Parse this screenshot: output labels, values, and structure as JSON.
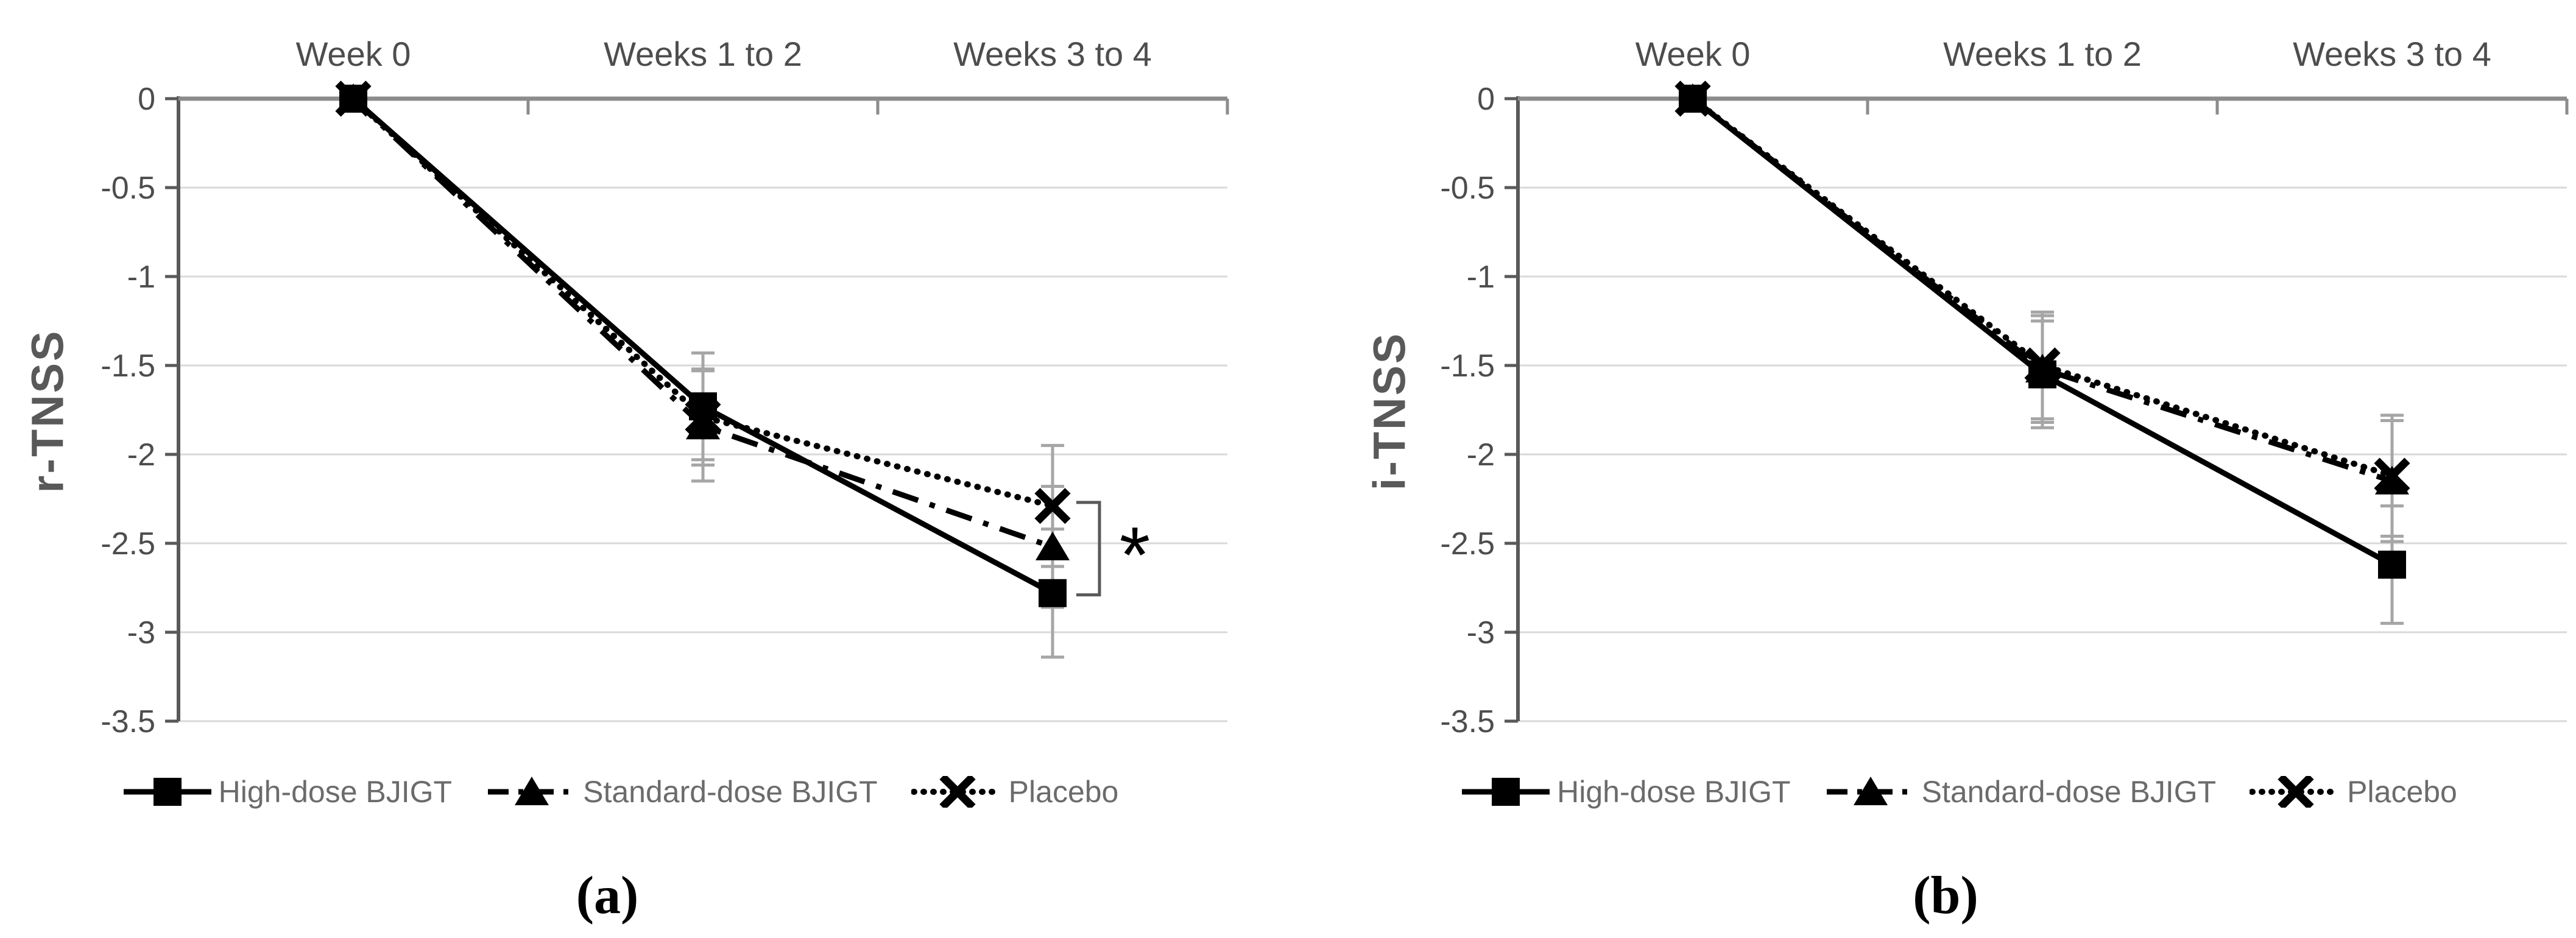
{
  "page": {
    "background": "#ffffff"
  },
  "panels": [
    {
      "caption": "(a)",
      "y_axis_title": "r-TNSS"
    },
    {
      "caption": "(b)",
      "y_axis_title": "i-TNSS"
    }
  ],
  "legend": {
    "position": "bottom",
    "items": [
      {
        "label": "High-dose BJIGT",
        "line": "solid",
        "marker": "square"
      },
      {
        "label": "Standard-dose BJIGT",
        "line": "dashdot",
        "marker": "triangle"
      },
      {
        "label": "Placebo",
        "line": "dotted",
        "marker": "x"
      }
    ]
  },
  "colors": {
    "series_line": "#000000",
    "error_bar": "#a6a6a6",
    "gridline": "#d9d9d9",
    "top_axis": "#8c8c8c",
    "y_axis": "#595959",
    "tick_label_text": "#4d4d4d",
    "category_label_text": "#4d4d4d",
    "legend_text": "#6b6b6b",
    "annotation": "#595959",
    "caption_text": "#000000"
  },
  "chart_data": [
    {
      "type": "line",
      "title": "",
      "xlabel": "",
      "ylabel": "r-TNSS",
      "categories": [
        "Week 0",
        "Weeks 1 to 2",
        "Weeks 3 to 4"
      ],
      "ylim": [
        -3.5,
        0
      ],
      "yticks": [
        0,
        -0.5,
        -1,
        -1.5,
        -2,
        -2.5,
        -3,
        -3.5
      ],
      "grid": true,
      "legend_position": "bottom",
      "series": [
        {
          "name": "High-dose BJIGT",
          "style": "solid",
          "marker": "square",
          "values": [
            0,
            -1.73,
            -2.78
          ],
          "errors": [
            0,
            0.3,
            0.36
          ]
        },
        {
          "name": "Standard-dose BJIGT",
          "style": "dashdot",
          "marker": "triangle",
          "values": [
            0,
            -1.84,
            -2.52
          ],
          "errors": [
            0,
            0.31,
            0.34
          ]
        },
        {
          "name": "Placebo",
          "style": "dotted",
          "marker": "x",
          "values": [
            0,
            -1.79,
            -2.29
          ],
          "errors": [
            0,
            0.27,
            0.34
          ]
        }
      ],
      "annotation": {
        "type": "significance-bracket",
        "category_index": 2,
        "from": -2.27,
        "to": -2.79,
        "label": "*"
      }
    },
    {
      "type": "line",
      "title": "",
      "xlabel": "",
      "ylabel": "i-TNSS",
      "categories": [
        "Week 0",
        "Weeks 1 to 2",
        "Weeks 3 to 4"
      ],
      "ylim": [
        -3.5,
        0
      ],
      "yticks": [
        0,
        -0.5,
        -1,
        -1.5,
        -2,
        -2.5,
        -3,
        -3.5
      ],
      "grid": true,
      "legend_position": "bottom",
      "series": [
        {
          "name": "High-dose BJIGT",
          "style": "solid",
          "marker": "square",
          "values": [
            0,
            -1.55,
            -2.62
          ],
          "errors": [
            0,
            0.3,
            0.33
          ]
        },
        {
          "name": "Standard-dose BJIGT",
          "style": "dashdot",
          "marker": "triangle",
          "values": [
            0,
            -1.52,
            -2.15
          ],
          "errors": [
            0,
            0.3,
            0.34
          ]
        },
        {
          "name": "Placebo",
          "style": "dotted",
          "marker": "x",
          "values": [
            0,
            -1.5,
            -2.12
          ],
          "errors": [
            0,
            0.3,
            0.34
          ]
        }
      ],
      "annotation": null
    }
  ]
}
